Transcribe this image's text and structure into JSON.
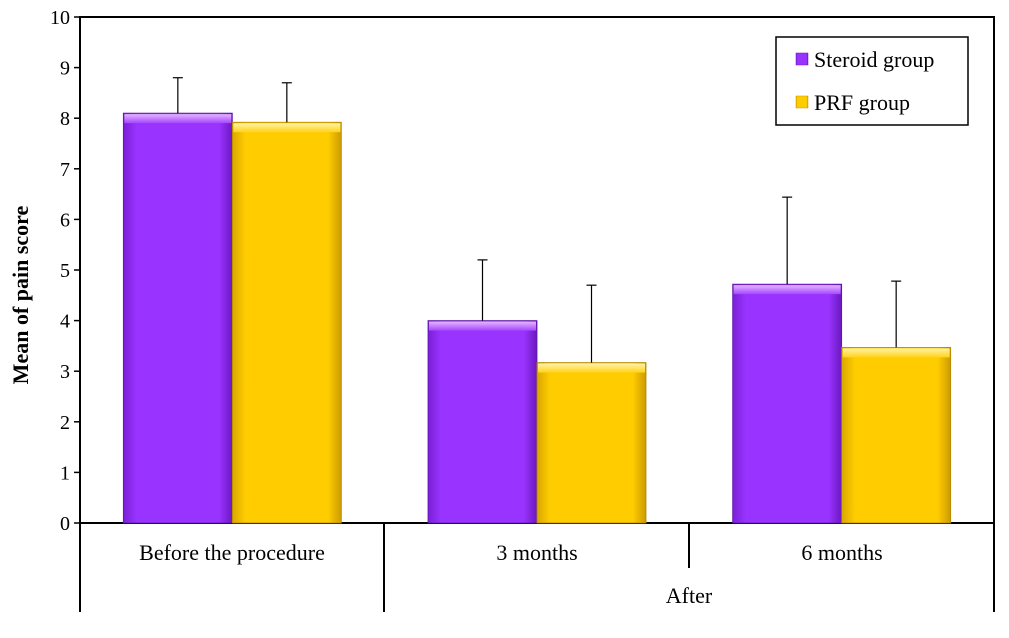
{
  "chart_data": {
    "type": "bar",
    "title": "",
    "xlabel": "",
    "ylabel": "Mean of pain score",
    "ylim": [
      0,
      10
    ],
    "yticks": [
      0,
      1,
      2,
      3,
      4,
      5,
      6,
      7,
      8,
      9,
      10
    ],
    "categories": [
      "Before the procedure",
      "3 months",
      "6 months"
    ],
    "group_label": "After",
    "legend_position": "top-right",
    "grid": false,
    "series": [
      {
        "name": "Steroid group",
        "color": "#9933ff",
        "values": [
          8.1,
          4.0,
          4.72
        ],
        "error": [
          0.7,
          1.2,
          1.72
        ]
      },
      {
        "name": "PRF group",
        "color": "#ffcc00",
        "values": [
          7.92,
          3.17,
          3.47
        ],
        "error": [
          0.78,
          1.53,
          1.31
        ]
      }
    ]
  }
}
